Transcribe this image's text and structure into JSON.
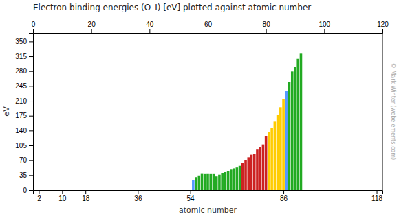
{
  "chart_data": {
    "type": "bar",
    "title": "Electron binding energies (O–I) [eV] plotted against atomic number",
    "xlabel": "atomic number",
    "ylabel": "eV",
    "annotations": [
      "© Mark Winter (webelements.com)"
    ],
    "x": [
      55,
      56,
      57,
      58,
      59,
      60,
      61,
      62,
      63,
      64,
      65,
      66,
      67,
      68,
      69,
      70,
      71,
      72,
      73,
      74,
      75,
      76,
      77,
      78,
      79,
      80,
      81,
      82,
      83,
      84,
      85,
      86,
      87,
      88,
      89,
      90,
      91,
      92
    ],
    "values": [
      22.7,
      30.3,
      34.3,
      37.8,
      37.4,
      37.5,
      37.4,
      37.4,
      32.0,
      36.0,
      39.0,
      42.0,
      45.0,
      48.0,
      51.0,
      53.0,
      57.0,
      64.0,
      71.0,
      77.0,
      83.0,
      84.0,
      95.0,
      101.0,
      107.2,
      127.0,
      136.0,
      147.0,
      161.0,
      177.0,
      195.0,
      214.0,
      234.0,
      254.0,
      279.0,
      290.0,
      309.0,
      321.0
    ],
    "colors": [
      "#5599ff",
      "#22aa22",
      "#22aa22",
      "#22aa22",
      "#22aa22",
      "#22aa22",
      "#22aa22",
      "#22aa22",
      "#22aa22",
      "#22aa22",
      "#22aa22",
      "#22aa22",
      "#22aa22",
      "#22aa22",
      "#22aa22",
      "#22aa22",
      "#22aa22",
      "#cc2222",
      "#cc2222",
      "#cc2222",
      "#cc2222",
      "#cc2222",
      "#cc2222",
      "#cc2222",
      "#cc2222",
      "#cc2222",
      "#ffcc00",
      "#ffcc00",
      "#ffcc00",
      "#ffcc00",
      "#ffcc00",
      "#ffcc00",
      "#5599ff",
      "#22aa22",
      "#22aa22",
      "#22aa22",
      "#22aa22",
      "#22aa22"
    ],
    "xlim": [
      0,
      120
    ],
    "ylim": [
      0,
      370
    ],
    "xticks": [
      2,
      10,
      18,
      36,
      54,
      86,
      118
    ],
    "x2ticks": [
      0,
      20,
      40,
      60,
      80,
      100,
      120
    ],
    "yticks": [
      0,
      35,
      70,
      105,
      140,
      175,
      210,
      245,
      280,
      315,
      350
    ],
    "grid": false
  }
}
